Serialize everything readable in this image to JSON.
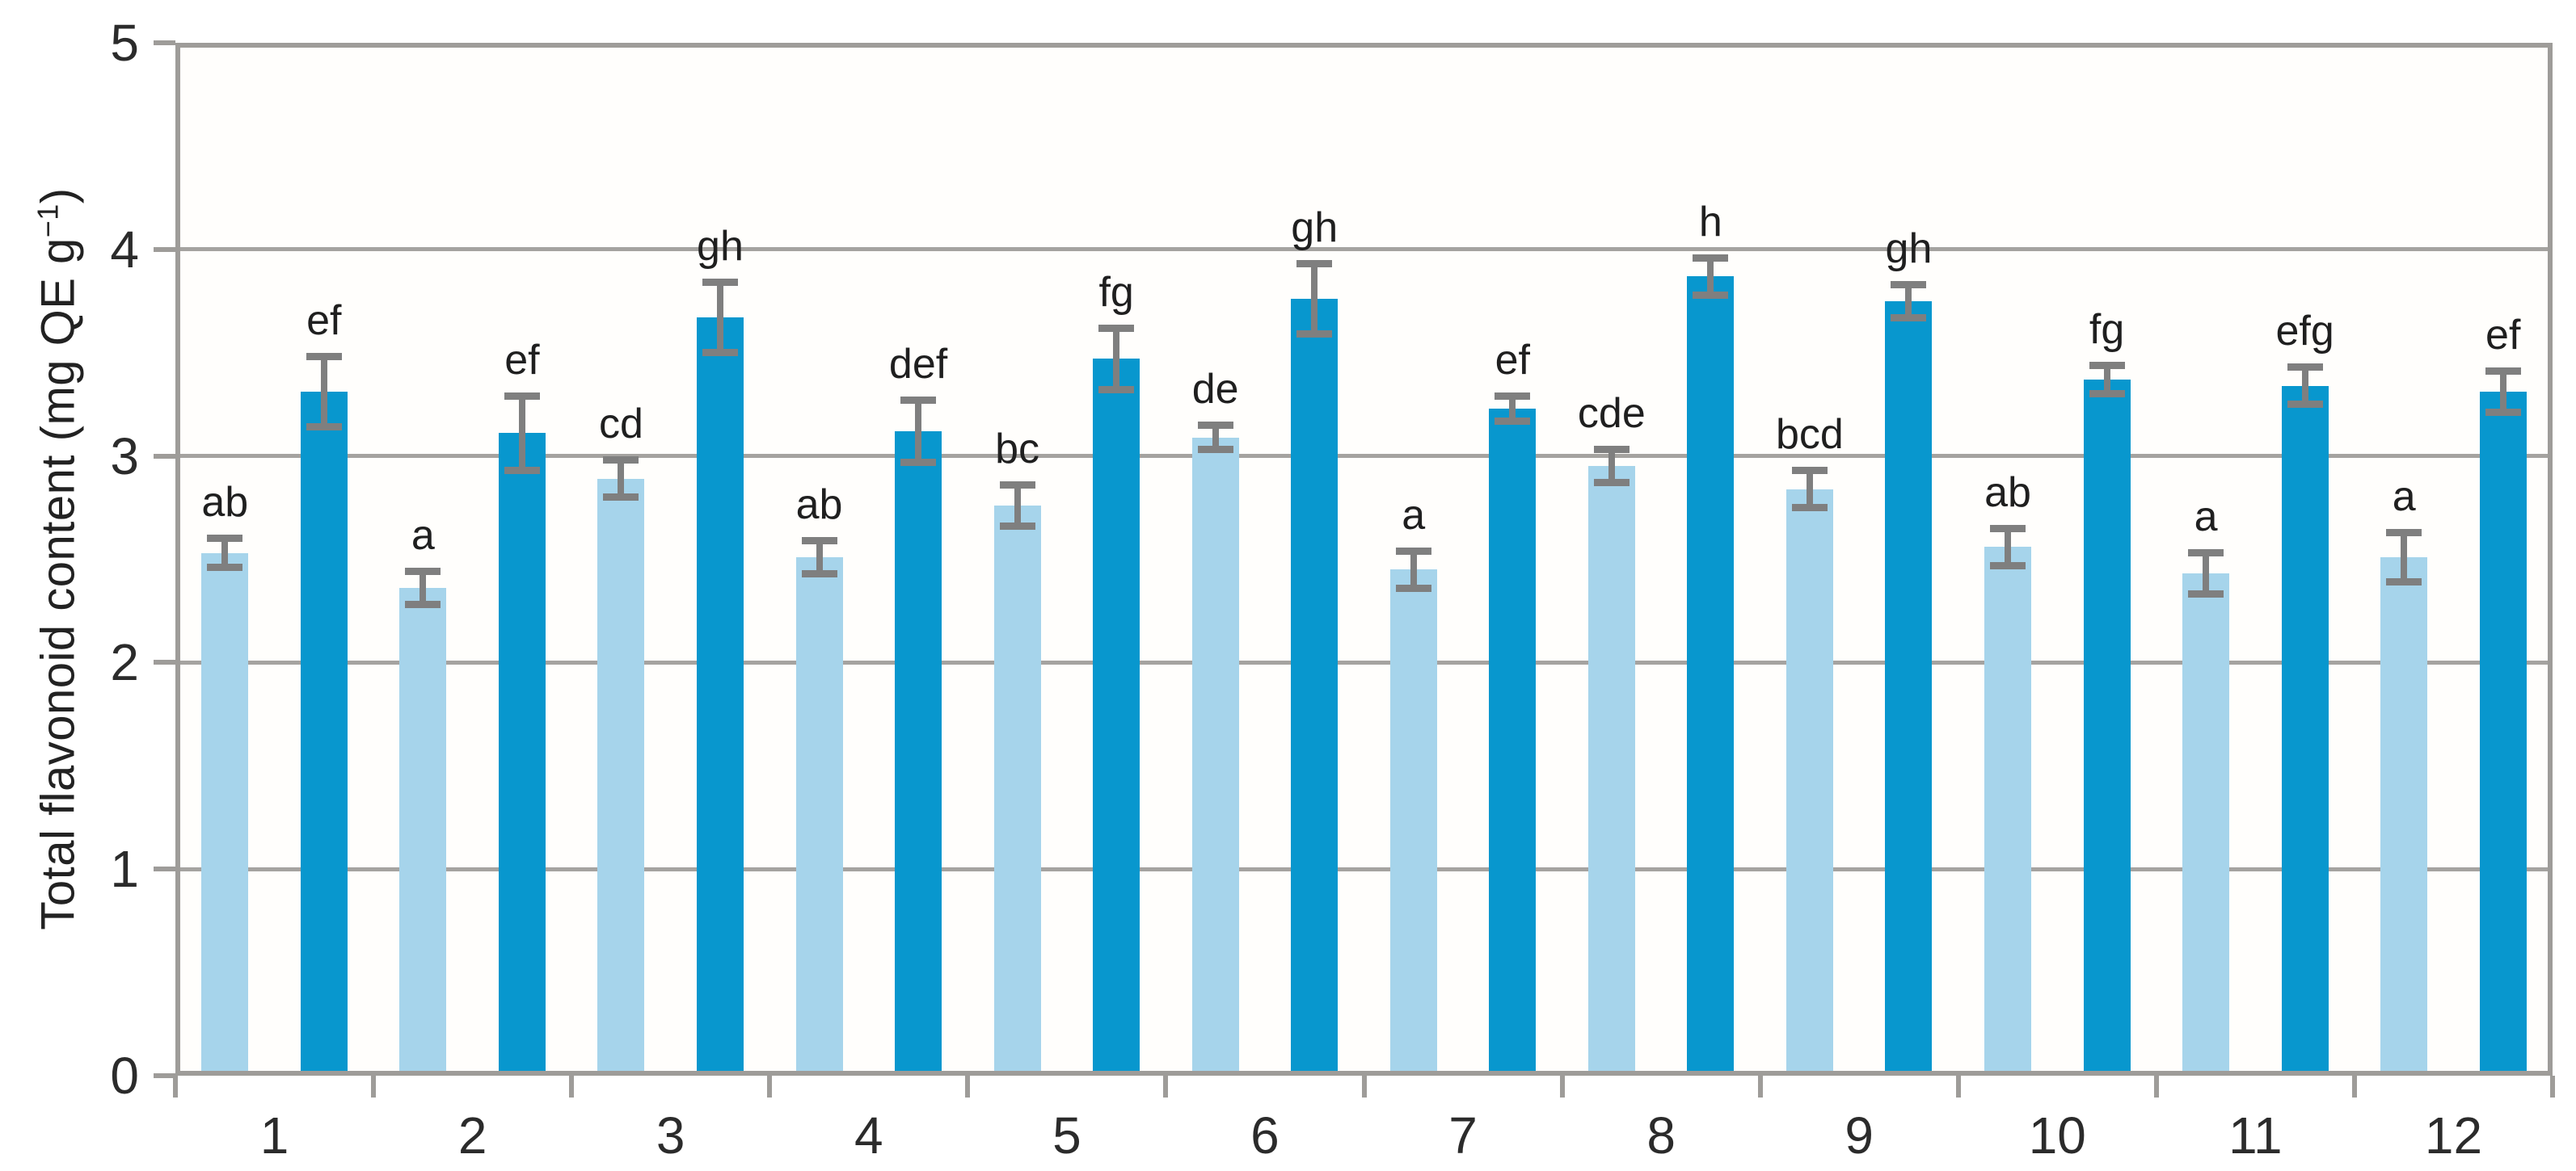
{
  "y_axis": {
    "title_main": "Total flavonoid content (mg QE g",
    "title_sup": "−1",
    "title_close": ")"
  },
  "chart_data": {
    "type": "bar",
    "title": "",
    "xlabel": "",
    "ylabel": "Total flavonoid content (mg QE g⁻¹)",
    "ylim": [
      0,
      5
    ],
    "yticks": [
      0,
      1,
      2,
      3,
      4,
      5
    ],
    "grid": "horizontal gridlines at 1,2,3,4; full gray frame around plot",
    "legend_position": "none",
    "categories": [
      "1",
      "2",
      "3",
      "4",
      "5",
      "6",
      "7",
      "8",
      "9",
      "10",
      "11",
      "12"
    ],
    "series": [
      {
        "name": "light-blue series",
        "color": "#a6d4eb",
        "values": [
          2.53,
          2.36,
          2.89,
          2.51,
          2.76,
          3.09,
          2.45,
          2.95,
          2.84,
          2.56,
          2.43,
          2.51
        ],
        "errors": [
          0.06,
          0.07,
          0.08,
          0.07,
          0.09,
          0.05,
          0.08,
          0.07,
          0.08,
          0.08,
          0.09,
          0.11
        ],
        "sig_letters": [
          "ab",
          "a",
          "cd",
          "ab",
          "bc",
          "de",
          "a",
          "cde",
          "bcd",
          "ab",
          "a",
          "a"
        ]
      },
      {
        "name": "dark-blue series",
        "color": "#0897ce",
        "values": [
          3.31,
          3.11,
          3.67,
          3.12,
          3.47,
          3.76,
          3.23,
          3.87,
          3.75,
          3.37,
          3.34,
          3.31
        ],
        "errors": [
          0.16,
          0.17,
          0.16,
          0.14,
          0.14,
          0.16,
          0.05,
          0.08,
          0.07,
          0.06,
          0.08,
          0.09
        ],
        "sig_letters": [
          "ef",
          "ef",
          "gh",
          "def",
          "fg",
          "gh",
          "ef",
          "h",
          "gh",
          "fg",
          "efg",
          "ef"
        ]
      }
    ],
    "error_bar_color": "#7f7f7f",
    "axis_line_color": "#9e9c99",
    "background_color": "#ffffff"
  }
}
